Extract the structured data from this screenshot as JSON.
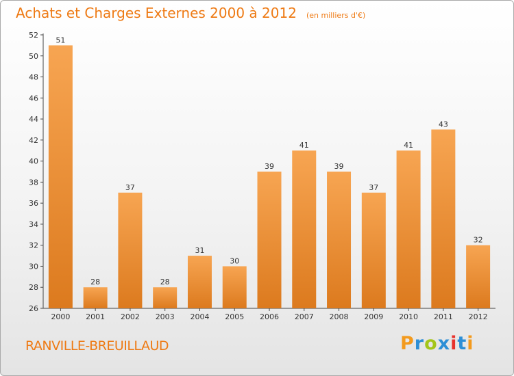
{
  "title": "Achats et Charges Externes 2000 à 2012",
  "subtitle": "(en milliers d'€)",
  "location": "RANVILLE-BREUILLAUD",
  "brand": "Proxiti",
  "brand_colors": [
    "#f39a1d",
    "#2d8fd6",
    "#a4c51a",
    "#2d8fd6",
    "#e8322c",
    "#2d8fd6",
    "#f39a1d"
  ],
  "colors": {
    "bar_top": "#f7a552",
    "bar_bottom": "#dc7a1e",
    "title": "#ee7a14"
  },
  "chart_data": {
    "type": "bar",
    "categories": [
      "2000",
      "2001",
      "2002",
      "2003",
      "2004",
      "2005",
      "2006",
      "2007",
      "2008",
      "2009",
      "2010",
      "2011",
      "2012"
    ],
    "values": [
      51,
      28,
      37,
      28,
      31,
      30,
      39,
      41,
      39,
      37,
      41,
      43,
      32
    ],
    "ylim": [
      26,
      52
    ],
    "yticks": [
      26,
      28,
      30,
      32,
      34,
      36,
      38,
      40,
      42,
      44,
      46,
      48,
      50,
      52
    ],
    "grid": false,
    "data_labels": true
  }
}
